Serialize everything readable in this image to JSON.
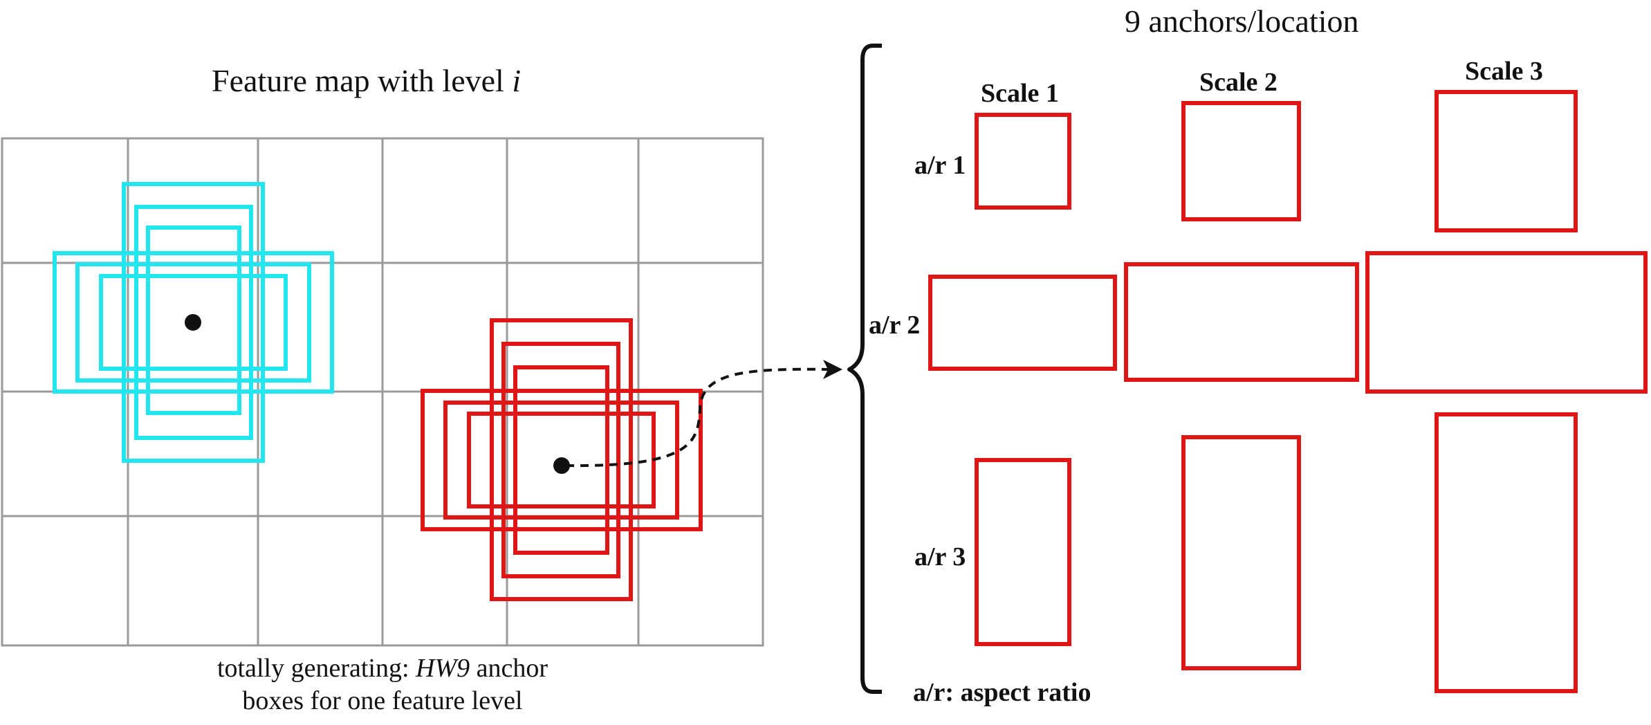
{
  "colors": {
    "grid": "#9a9a9a",
    "anchor_left": "#22e6ef",
    "anchor_right": "#e01616",
    "ink": "#111111"
  },
  "feature_map": {
    "title_text": "Feature map with level ",
    "title_italic": "i",
    "caption_line1_prefix": "totally generating: ",
    "caption_line1_italic": "HW9",
    "caption_line1_suffix": " anchor",
    "caption_line2": "boxes for one feature level"
  },
  "anchors_panel": {
    "title": "9 anchors/location",
    "scale_labels": [
      "Scale 1",
      "Scale 2",
      "Scale 3"
    ],
    "ratio_labels": [
      "a/r 1",
      "a/r 2",
      "a/r 3"
    ],
    "footnote": "a/r: aspect ratio"
  }
}
